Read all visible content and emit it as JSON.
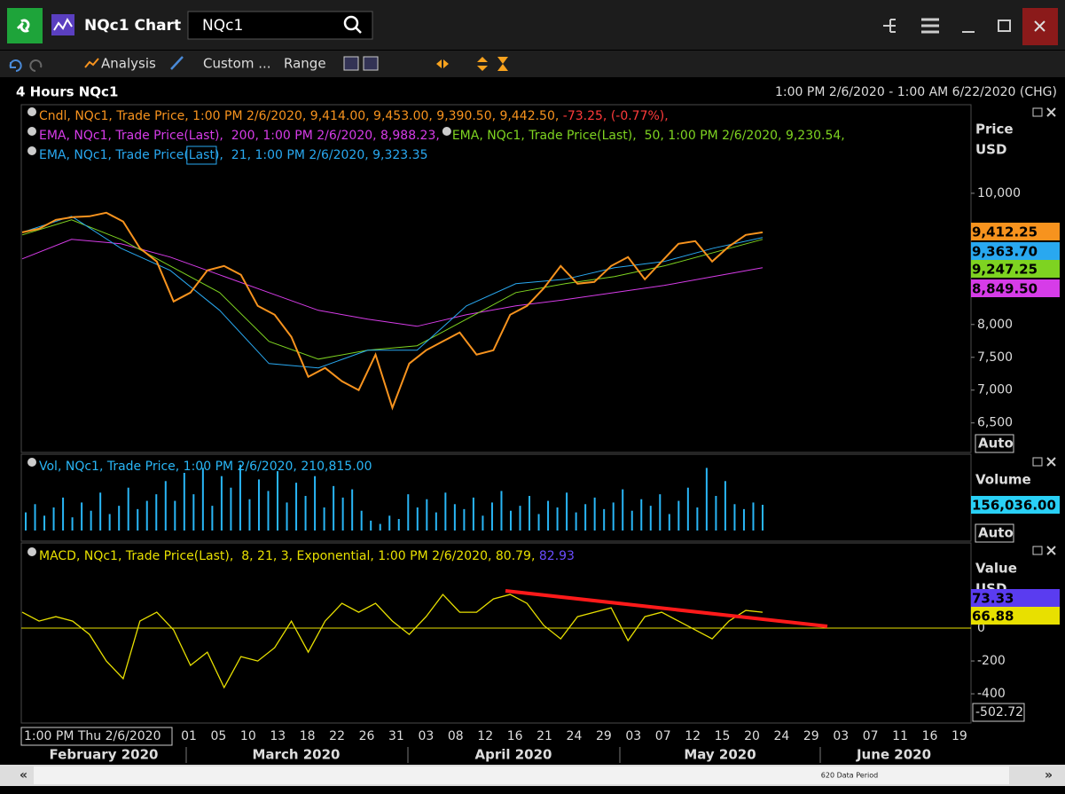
{
  "window": {
    "title": "NQc1 Chart",
    "search": "NQc1"
  },
  "toolbar": {
    "analysis": "Analysis",
    "custom": "Custom ...",
    "range": "Range"
  },
  "header": {
    "interval": "4 Hours NQc1",
    "range": "1:00 PM 2/6/2020 - 1:00 AM 6/22/2020 (CHG)"
  },
  "price_panel": {
    "legend": [
      [
        {
          "text": "Cndl, NQc1, Trade Price, 1:00 PM 2/6/2020, 9,414.00, 9,453.00, 9,390.50, 9,442.50, ",
          "color": "#f7931e"
        },
        {
          "text": "-73.25, (-0.77%),",
          "color": "#ff3b3b"
        }
      ],
      [
        {
          "text": "EMA, NQc1, Trade Price(Last),  200, 1:00 PM 2/6/2020, 8,988.23,",
          "color": "#d63ce8"
        },
        {
          "text": "EMA, NQc1, Trade Price(Last),  50, 1:00 PM 2/6/2020, 9,230.54,",
          "color": "#7ed321"
        }
      ],
      [
        {
          "text": "EMA, NQc1, Trade Price(",
          "color": "#29a8f0"
        },
        {
          "text": "Last",
          "color": "#29a8f0",
          "boxed": true
        },
        {
          "text": "),  21, 1:00 PM 2/6/2020, 9,323.35",
          "color": "#29a8f0"
        }
      ]
    ],
    "axis_title": [
      "Price",
      "USD"
    ],
    "ylim": [
      6050,
      11350
    ],
    "yticks": [
      {
        "value": 10000,
        "label": "10,000"
      },
      {
        "value": 8000,
        "label": "8,000"
      },
      {
        "value": 7500,
        "label": "7,500"
      },
      {
        "value": 7000,
        "label": "7,000"
      },
      {
        "value": 6500,
        "label": "6,500"
      }
    ],
    "series": [
      {
        "color": "#d63ce8",
        "values": [
          9000,
          9297,
          9230,
          9027,
          8757,
          8486,
          8216,
          8081,
          7973,
          8149,
          8284,
          8378,
          8486,
          8595,
          8730,
          8865
        ]
      },
      {
        "color": "#7ed321",
        "values": [
          9365,
          9595,
          9297,
          8892,
          8486,
          7743,
          7473,
          7608,
          7676,
          8081,
          8486,
          8622,
          8730,
          8892,
          9095,
          9297
        ]
      },
      {
        "color": "#29a8f0",
        "values": [
          9405,
          9649,
          9162,
          8824,
          8216,
          7405,
          7338,
          7608,
          7608,
          8284,
          8622,
          8689,
          8865,
          8959,
          9162,
          9324
        ]
      },
      {
        "color": "#f7931e",
        "values": [
          9405,
          9459,
          9595,
          9635,
          9649,
          9703,
          9568,
          9162,
          8959,
          8351,
          8486,
          8824,
          8892,
          8757,
          8284,
          8149,
          7811,
          7203,
          7338,
          7135,
          7000,
          7541,
          6730,
          7405,
          7608,
          7743,
          7878,
          7541,
          7608,
          8149,
          8284,
          8554,
          8892,
          8622,
          8649,
          8892,
          9027,
          8689,
          8959,
          9230,
          9270,
          8959,
          9189,
          9365,
          9405
        ]
      }
    ],
    "badges": [
      {
        "text": "9,412.25",
        "color": "#f7931e"
      },
      {
        "text": "9,363.70",
        "color": "#29a8f0"
      },
      {
        "text": "9,247.25",
        "color": "#7ed321"
      },
      {
        "text": "8,849.50",
        "color": "#d63ce8"
      }
    ],
    "scale_mode": "Auto"
  },
  "volume_panel": {
    "legend": [
      [
        {
          "text": "Vol, NQc1, Trade Price, 1:00 PM 2/6/2020, 210,815.00",
          "color": "#29b6f6"
        }
      ]
    ],
    "axis_title": [
      "Volume"
    ],
    "ylim": [
      0,
      463000
    ],
    "color": "#29b6f6",
    "values": [
      110000,
      160000,
      90000,
      140000,
      200000,
      80000,
      170000,
      120000,
      230000,
      100000,
      150000,
      260000,
      130000,
      180000,
      220000,
      300000,
      180000,
      350000,
      220000,
      380000,
      150000,
      330000,
      260000,
      400000,
      190000,
      310000,
      240000,
      360000,
      170000,
      290000,
      210000,
      330000,
      140000,
      270000,
      200000,
      250000,
      120000,
      60000,
      40000,
      90000,
      70000,
      220000,
      140000,
      190000,
      110000,
      230000,
      160000,
      130000,
      200000,
      90000,
      170000,
      240000,
      120000,
      150000,
      210000,
      100000,
      180000,
      140000,
      230000,
      110000,
      160000,
      200000,
      130000,
      170000,
      250000,
      120000,
      190000,
      150000,
      220000,
      100000,
      180000,
      260000,
      140000,
      380000,
      210000,
      300000,
      160000,
      130000,
      170000,
      156036
    ],
    "badges": [
      {
        "text": "156,036.00",
        "color": "#29d0f6"
      }
    ],
    "scale_mode": "Auto"
  },
  "macd_panel": {
    "legend": [
      [
        {
          "text": "MACD, NQc1, Trade Price(Last),  8, 21, 3, Exponential, 1:00 PM 2/6/2020, 80.79, ",
          "color": "#e8e000"
        },
        {
          "text": "82.93",
          "color": "#6a4cff"
        }
      ]
    ],
    "axis_title": [
      "Value",
      "USD"
    ],
    "ylim": [
      -578,
      519
    ],
    "yticks": [
      0,
      -200,
      -400
    ],
    "zero_color": "#e8e000",
    "series": [
      {
        "color": "#e8e000",
        "values": [
          97,
          43,
          70,
          43,
          -38,
          -200,
          -308,
          43,
          97,
          -11,
          -227,
          -146,
          -362,
          -173,
          -200,
          -119,
          43,
          -146,
          43,
          151,
          97,
          151,
          43,
          -38,
          70,
          205,
          97,
          97,
          178,
          205,
          151,
          16,
          -65,
          70,
          97,
          124,
          -76,
          70,
          97,
          43,
          -11,
          -65,
          43,
          108,
          97
        ]
      }
    ],
    "trendline": {
      "color": "#ff1a1a",
      "values": [
        227,
        11
      ]
    },
    "badges": [
      {
        "text": "73.33",
        "color": "#5a3cf0"
      },
      {
        "text": "66.88",
        "color": "#e8e000"
      }
    ],
    "min_label": "-502.72"
  },
  "x_axis": {
    "start": "1:00 PM Thu 2/6/2020",
    "days": [
      "01",
      "05",
      "10",
      "13",
      "18",
      "22",
      "26",
      "31",
      "03",
      "08",
      "12",
      "16",
      "21",
      "24",
      "29",
      "03",
      "07",
      "12",
      "15",
      "20",
      "24",
      "29",
      "03",
      "07",
      "11",
      "16",
      "19"
    ],
    "months": [
      "February 2020",
      "March 2020",
      "April 2020",
      "May 2020",
      "June 2020"
    ]
  },
  "footer": {
    "period": "620 Data Period"
  }
}
